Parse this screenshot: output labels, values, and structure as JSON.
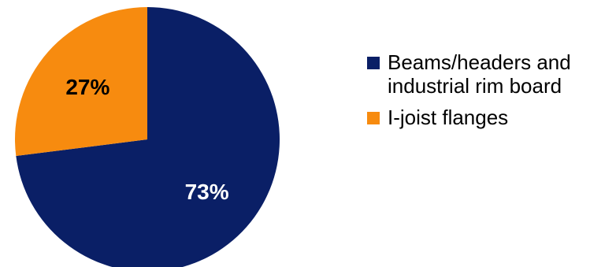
{
  "chart_data": {
    "type": "pie",
    "title": "",
    "slices": [
      {
        "label": "Beams/headers and industrial rim board",
        "value": 73,
        "display": "73%",
        "color": "#0a1f66",
        "label_color": "#ffffff"
      },
      {
        "label": "I-joist flanges",
        "value": 27,
        "display": "27%",
        "color": "#f78b0f",
        "label_color": "#000000"
      }
    ],
    "start_angle_deg": 0,
    "direction": "clockwise",
    "legend_position": "right"
  }
}
